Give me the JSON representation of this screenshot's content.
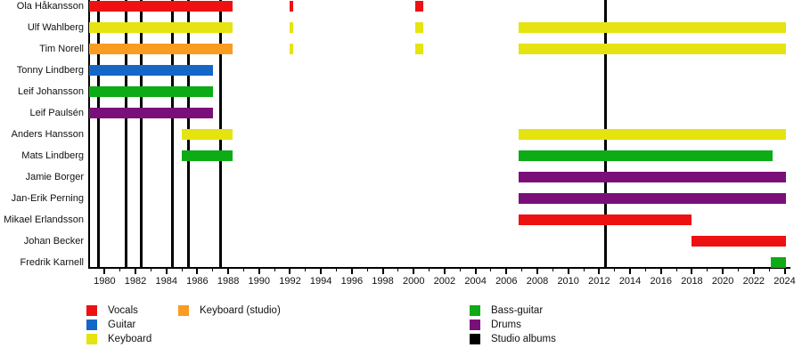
{
  "chart_data": {
    "type": "timeline",
    "title": "",
    "x_axis": {
      "min": 1979,
      "max": 2024.4,
      "tick_labels": [
        "1980",
        "1982",
        "1984",
        "1986",
        "1988",
        "1990",
        "1992",
        "1994",
        "1996",
        "1998",
        "2000",
        "2002",
        "2004",
        "2006",
        "2008",
        "2010",
        "2012",
        "2014",
        "2016",
        "2018",
        "2020",
        "2022",
        "2024"
      ],
      "minor_tick_every": 1,
      "grid": false
    },
    "roles": {
      "vocals": {
        "label": "Vocals",
        "color": "#EE1111"
      },
      "guitar": {
        "label": "Guitar",
        "color": "#1467C6"
      },
      "keyboard": {
        "label": "Keyboard",
        "color": "#E5E410"
      },
      "keyboard_studio": {
        "label": "Keyboard (studio)",
        "color": "#F99C20"
      },
      "bass": {
        "label": "Bass-guitar",
        "color": "#0DAB15"
      },
      "drums": {
        "label": "Drums",
        "color": "#7A0F7A"
      },
      "albums": {
        "label": "Studio albums",
        "color": "#000000"
      }
    },
    "members": [
      {
        "name": "Ola Håkansson",
        "segments": [
          {
            "role": "vocals",
            "start": 1979.0,
            "end": 1988.3
          },
          {
            "role": "vocals",
            "start": 1992.0,
            "end": 1992.2
          },
          {
            "role": "vocals",
            "start": 2000.1,
            "end": 2000.6
          }
        ]
      },
      {
        "name": "Ulf Wahlberg",
        "segments": [
          {
            "role": "keyboard",
            "start": 1979.0,
            "end": 1988.3
          },
          {
            "role": "keyboard",
            "start": 1992.0,
            "end": 1992.2
          },
          {
            "role": "keyboard",
            "start": 2000.1,
            "end": 2000.6
          },
          {
            "role": "keyboard",
            "start": 2006.8,
            "end": 2024.1
          }
        ]
      },
      {
        "name": "Tim Norell",
        "segments": [
          {
            "role": "keyboard_studio",
            "start": 1979.0,
            "end": 1988.3
          },
          {
            "role": "keyboard",
            "start": 1992.0,
            "end": 1992.2
          },
          {
            "role": "keyboard",
            "start": 2000.1,
            "end": 2000.6
          },
          {
            "role": "keyboard",
            "start": 2006.8,
            "end": 2024.1
          }
        ]
      },
      {
        "name": "Tonny Lindberg",
        "segments": [
          {
            "role": "guitar",
            "start": 1979.0,
            "end": 1987.0
          }
        ]
      },
      {
        "name": "Leif Johansson",
        "segments": [
          {
            "role": "bass",
            "start": 1979.0,
            "end": 1987.0
          }
        ]
      },
      {
        "name": "Leif Paulsén",
        "segments": [
          {
            "role": "drums",
            "start": 1979.0,
            "end": 1987.0
          }
        ]
      },
      {
        "name": "Anders Hansson",
        "segments": [
          {
            "role": "keyboard",
            "start": 1985.0,
            "end": 1988.3
          },
          {
            "role": "keyboard",
            "start": 2006.8,
            "end": 2024.1
          }
        ]
      },
      {
        "name": "Mats Lindberg",
        "segments": [
          {
            "role": "bass",
            "start": 1985.0,
            "end": 1988.3
          },
          {
            "role": "bass",
            "start": 2006.8,
            "end": 2023.2
          }
        ]
      },
      {
        "name": "Jamie Borger",
        "segments": [
          {
            "role": "drums",
            "start": 2006.8,
            "end": 2024.1
          }
        ]
      },
      {
        "name": "Jan-Erik Perning",
        "segments": [
          {
            "role": "drums",
            "start": 2006.8,
            "end": 2024.1
          }
        ]
      },
      {
        "name": "Mikael Erlandsson",
        "segments": [
          {
            "role": "vocals",
            "start": 2006.8,
            "end": 2018.0
          }
        ]
      },
      {
        "name": "Johan Becker",
        "segments": [
          {
            "role": "vocals",
            "start": 2018.0,
            "end": 2024.1
          }
        ]
      },
      {
        "name": "Fredrik Karnell",
        "segments": [
          {
            "role": "bass",
            "start": 2023.1,
            "end": 2024.1
          }
        ]
      }
    ],
    "album_markers": [
      1979.6,
      1981.4,
      1982.4,
      1984.4,
      1985.4,
      1987.5,
      2012.4
    ],
    "legend": {
      "columns": [
        [
          "vocals",
          "guitar",
          "keyboard"
        ],
        [
          "keyboard_studio"
        ],
        [
          "bass",
          "drums",
          "albums"
        ]
      ],
      "position": "bottom"
    }
  }
}
